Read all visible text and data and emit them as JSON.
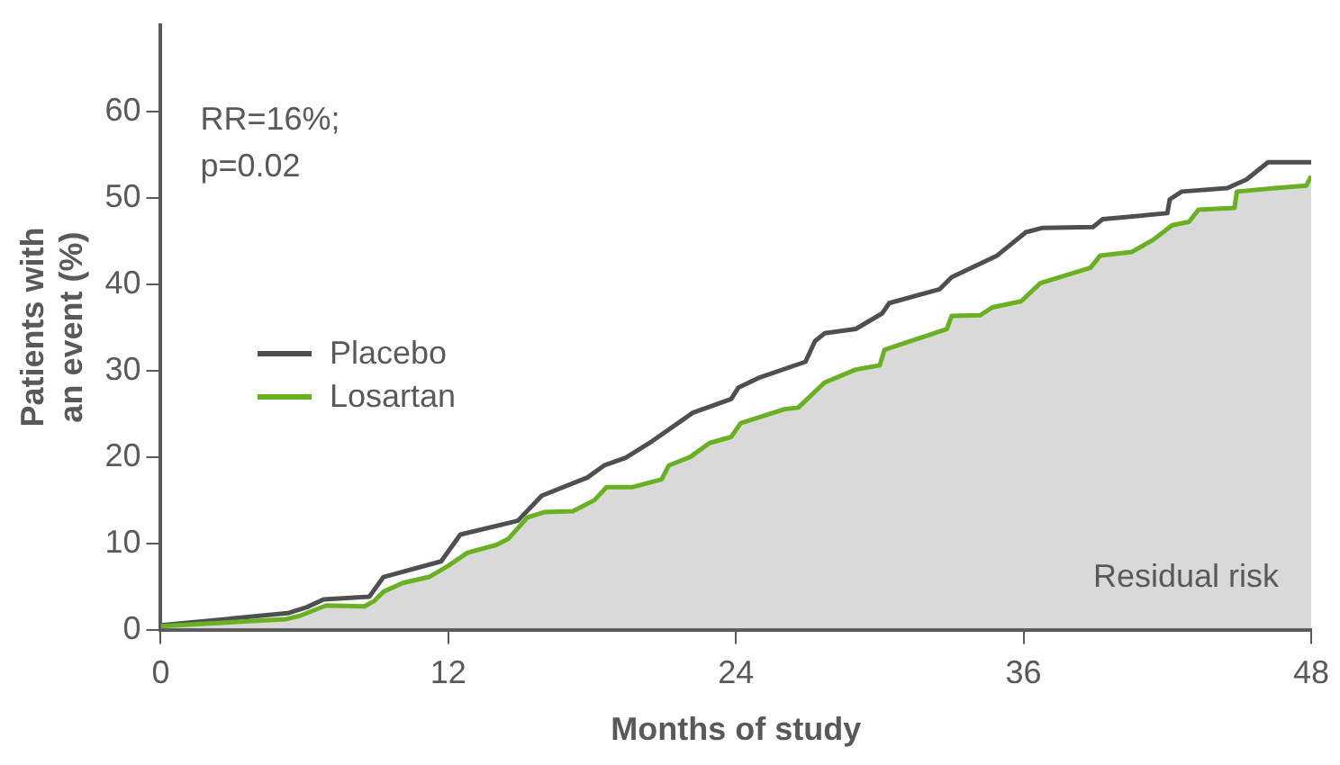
{
  "chart_data": {
    "type": "line",
    "xlabel": "Months of study",
    "ylabel": "Patients with an event (%)",
    "xlim": [
      0,
      48
    ],
    "xticks": [
      0,
      12,
      24,
      36,
      48
    ],
    "ylim": [
      0,
      70
    ],
    "yticks": [
      0,
      10,
      20,
      30,
      40,
      50,
      60
    ],
    "grid": false,
    "legend": "left",
    "marker": "none",
    "line_style": "solid",
    "annotations": [
      "RR=16%;",
      "p=0.02",
      "Residual risk"
    ],
    "series": [
      {
        "name": "Placebo",
        "color": "#4d4f53",
        "x": [
          0,
          5.3,
          6.1,
          6.8,
          8.7,
          9.3,
          11.7,
          12.5,
          14.9,
          15.9,
          17.8,
          18.5,
          19.4,
          20.5,
          22.2,
          23.8,
          24.1,
          25.0,
          26.9,
          27.3,
          27.7,
          29.0,
          30.1,
          30.4,
          32.5,
          33.0,
          34.9,
          36.1,
          36.8,
          38.9,
          39.3,
          42.0,
          42.1,
          42.6,
          44.5,
          45.3,
          46.2,
          48.0
        ],
        "values": [
          0.5,
          1.9,
          2.6,
          3.5,
          3.8,
          6.1,
          7.9,
          11.0,
          12.6,
          15.5,
          17.6,
          19.0,
          19.9,
          21.8,
          25.1,
          26.7,
          28.0,
          29.2,
          31.0,
          33.4,
          34.3,
          34.8,
          36.6,
          37.8,
          39.4,
          40.8,
          43.3,
          46.0,
          46.5,
          46.6,
          47.5,
          48.2,
          49.8,
          50.7,
          51.1,
          52.1,
          54.1,
          54.1
        ]
      },
      {
        "name": "Losartan",
        "type": "area",
        "color": "#6ab023",
        "x": [
          0,
          5.2,
          5.8,
          6.9,
          8.5,
          8.9,
          9.3,
          10.1,
          11.2,
          12.0,
          12.8,
          14.0,
          14.5,
          15.3,
          16.0,
          17.2,
          18.1,
          18.6,
          19.7,
          20.9,
          21.2,
          22.1,
          22.9,
          23.8,
          24.2,
          26.0,
          26.6,
          27.7,
          29.0,
          30.0,
          30.2,
          32.8,
          33.0,
          34.2,
          34.7,
          35.9,
          36.7,
          38.8,
          39.2,
          40.5,
          41.4,
          42.2,
          42.9,
          43.3,
          44.8,
          44.9,
          46.5,
          47.8,
          48.0
        ],
        "values": [
          0.4,
          1.2,
          1.6,
          2.8,
          2.7,
          3.3,
          4.4,
          5.4,
          6.1,
          7.4,
          8.9,
          9.8,
          10.5,
          13.0,
          13.6,
          13.7,
          15.0,
          16.5,
          16.5,
          17.4,
          19.0,
          20.0,
          21.6,
          22.3,
          23.9,
          25.5,
          25.7,
          28.6,
          30.1,
          30.6,
          32.4,
          34.8,
          36.3,
          36.4,
          37.3,
          38.0,
          40.1,
          41.9,
          43.3,
          43.7,
          45.1,
          46.8,
          47.2,
          48.6,
          48.8,
          50.7,
          51.1,
          51.4,
          52.5
        ]
      }
    ]
  }
}
